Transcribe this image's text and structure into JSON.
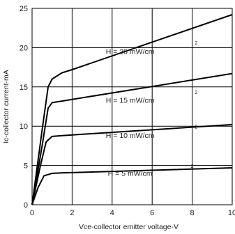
{
  "chart_data": {
    "type": "line",
    "xlabel": "Vce-collector emitter voltage-V",
    "ylabel": "Ic-collector current-mA",
    "xlim": [
      0,
      10
    ],
    "ylim": [
      0,
      25
    ],
    "xticks": [
      "0",
      "2",
      "4",
      "6",
      "8",
      "10"
    ],
    "yticks": [
      "0",
      "5",
      "10",
      "15",
      "20",
      "25"
    ],
    "grid": true,
    "series": [
      {
        "name": "H = 20 mW/cm",
        "superscript": "2",
        "color": "#000000",
        "x": [
          0,
          0.5,
          0.8,
          1.0,
          1.5,
          2.0,
          10.0
        ],
        "y": [
          0,
          9.5,
          15.0,
          16.0,
          16.8,
          17.2,
          24.2
        ]
      },
      {
        "name": "H = 15 mW/cm",
        "superscript": "2",
        "color": "#000000",
        "x": [
          0,
          0.5,
          0.8,
          1.0,
          1.5,
          10.0
        ],
        "y": [
          0,
          7.5,
          12.3,
          13.0,
          13.2,
          16.7
        ]
      },
      {
        "name": "H = 10 mW/cm",
        "superscript": "2",
        "color": "#000000",
        "x": [
          0,
          0.4,
          0.7,
          1.0,
          1.5,
          10.0
        ],
        "y": [
          0,
          4.8,
          8.0,
          8.7,
          8.8,
          10.2
        ]
      },
      {
        "name": "H = 5 mW/cm",
        "superscript": "2",
        "color": "#000000",
        "x": [
          0,
          0.3,
          0.6,
          1.0,
          1.5,
          10.0
        ],
        "y": [
          0,
          2.2,
          3.7,
          4.0,
          4.05,
          4.7
        ]
      }
    ]
  }
}
